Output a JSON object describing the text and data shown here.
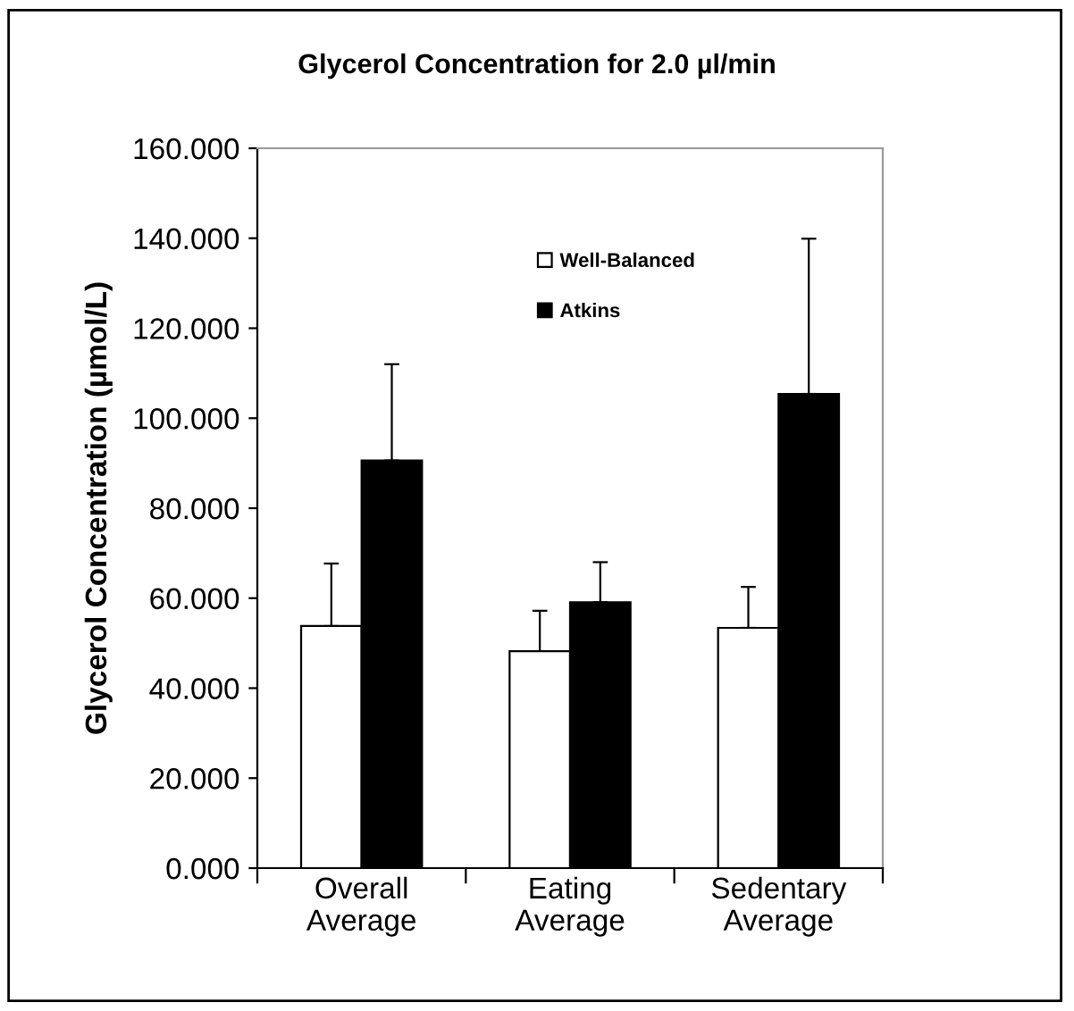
{
  "chart_data": {
    "type": "bar",
    "title": "Glycerol Concentration for 2.0 µl/min",
    "ylabel": "Glycerol Concentration (µmol/L)",
    "categories": [
      "Overall\nAverage",
      "Eating\nAverage",
      "Sedentary\nAverage"
    ],
    "series": [
      {
        "name": "Well-Balanced",
        "color": "#ffffff",
        "values": [
          53.8,
          48.2,
          53.4
        ],
        "errors": [
          [
            53.8,
            67.7
          ],
          [
            48.2,
            57.2
          ],
          [
            53.4,
            62.5
          ]
        ]
      },
      {
        "name": "Atkins",
        "color": "#000000",
        "values": [
          90.6,
          59.1,
          105.4
        ],
        "errors": [
          [
            90.6,
            112.0
          ],
          [
            59.1,
            68.0
          ],
          [
            105.4,
            139.9
          ]
        ]
      }
    ],
    "ylim": [
      0,
      160
    ],
    "yticks": [
      {
        "value": 0,
        "label": "0.000"
      },
      {
        "value": 20,
        "label": "20.000"
      },
      {
        "value": 40,
        "label": "40.000"
      },
      {
        "value": 60,
        "label": "60.000"
      },
      {
        "value": 80,
        "label": "80.000"
      },
      {
        "value": 100,
        "label": "100.000"
      },
      {
        "value": 120,
        "label": "120.000"
      },
      {
        "value": 140,
        "label": "140.000"
      },
      {
        "value": 160,
        "label": "160.000"
      }
    ],
    "grid": false,
    "legend": "top"
  }
}
